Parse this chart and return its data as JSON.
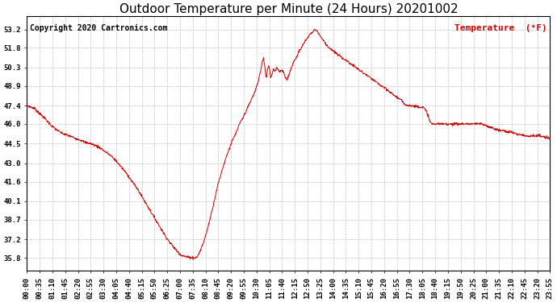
{
  "title": "Outdoor Temperature per Minute (24 Hours) 20201002",
  "copyright_text": "Copyright 2020 Cartronics.com",
  "legend_label": "Temperature  (°F)",
  "line_color": "#cc0000",
  "background_color": "#ffffff",
  "grid_color": "#bbbbbb",
  "yticks": [
    35.8,
    37.2,
    38.7,
    40.1,
    41.6,
    43.0,
    44.5,
    46.0,
    47.4,
    48.9,
    50.3,
    51.8,
    53.2
  ],
  "ylim": [
    34.8,
    54.2
  ],
  "x_labels": [
    "00:00",
    "00:35",
    "01:10",
    "01:45",
    "02:20",
    "02:55",
    "03:30",
    "04:05",
    "04:40",
    "05:15",
    "05:50",
    "06:25",
    "07:00",
    "07:35",
    "08:10",
    "08:45",
    "09:20",
    "09:55",
    "10:30",
    "11:05",
    "11:40",
    "12:15",
    "12:50",
    "13:25",
    "14:00",
    "14:35",
    "15:10",
    "15:45",
    "16:20",
    "16:55",
    "17:30",
    "18:05",
    "18:40",
    "19:15",
    "19:50",
    "20:25",
    "21:00",
    "21:35",
    "22:10",
    "22:45",
    "23:20",
    "23:55"
  ],
  "title_fontsize": 11,
  "axis_fontsize": 6.5,
  "copyright_fontsize": 7,
  "legend_fontsize": 8,
  "control_points": [
    [
      0,
      47.4
    ],
    [
      10,
      47.3
    ],
    [
      20,
      47.2
    ],
    [
      35,
      46.8
    ],
    [
      50,
      46.4
    ],
    [
      60,
      46.1
    ],
    [
      70,
      45.8
    ],
    [
      85,
      45.5
    ],
    [
      95,
      45.3
    ],
    [
      105,
      45.2
    ],
    [
      115,
      45.1
    ],
    [
      120,
      45.05
    ],
    [
      130,
      44.95
    ],
    [
      140,
      44.85
    ],
    [
      150,
      44.75
    ],
    [
      160,
      44.6
    ],
    [
      175,
      44.5
    ],
    [
      185,
      44.4
    ],
    [
      200,
      44.2
    ],
    [
      215,
      43.9
    ],
    [
      230,
      43.6
    ],
    [
      245,
      43.2
    ],
    [
      260,
      42.7
    ],
    [
      275,
      42.2
    ],
    [
      290,
      41.6
    ],
    [
      305,
      41.0
    ],
    [
      320,
      40.3
    ],
    [
      335,
      39.6
    ],
    [
      350,
      38.9
    ],
    [
      365,
      38.2
    ],
    [
      380,
      37.5
    ],
    [
      395,
      36.9
    ],
    [
      410,
      36.4
    ],
    [
      425,
      36.0
    ],
    [
      440,
      35.85
    ],
    [
      455,
      35.82
    ],
    [
      460,
      35.8
    ],
    [
      463,
      35.8
    ],
    [
      468,
      35.85
    ],
    [
      475,
      36.2
    ],
    [
      485,
      36.9
    ],
    [
      495,
      37.8
    ],
    [
      505,
      38.9
    ],
    [
      515,
      40.1
    ],
    [
      525,
      41.3
    ],
    [
      535,
      42.3
    ],
    [
      545,
      43.2
    ],
    [
      555,
      44.0
    ],
    [
      565,
      44.7
    ],
    [
      575,
      45.3
    ],
    [
      585,
      46.0
    ],
    [
      595,
      46.5
    ],
    [
      603,
      47.0
    ],
    [
      610,
      47.4
    ],
    [
      618,
      47.9
    ],
    [
      625,
      48.3
    ],
    [
      630,
      48.7
    ],
    [
      635,
      49.1
    ],
    [
      640,
      49.7
    ],
    [
      645,
      50.3
    ],
    [
      648,
      50.8
    ],
    [
      651,
      51.0
    ],
    [
      655,
      50.2
    ],
    [
      658,
      49.5
    ],
    [
      661,
      50.0
    ],
    [
      665,
      50.5
    ],
    [
      668,
      50.1
    ],
    [
      671,
      49.5
    ],
    [
      674,
      49.8
    ],
    [
      678,
      50.2
    ],
    [
      682,
      50.0
    ],
    [
      686,
      50.3
    ],
    [
      690,
      50.2
    ],
    [
      695,
      50.0
    ],
    [
      700,
      50.1
    ],
    [
      705,
      50.0
    ],
    [
      710,
      49.6
    ],
    [
      715,
      49.3
    ],
    [
      720,
      49.7
    ],
    [
      725,
      50.1
    ],
    [
      730,
      50.5
    ],
    [
      735,
      50.8
    ],
    [
      740,
      51.0
    ],
    [
      748,
      51.5
    ],
    [
      755,
      51.8
    ],
    [
      763,
      52.2
    ],
    [
      770,
      52.5
    ],
    [
      778,
      52.8
    ],
    [
      785,
      53.0
    ],
    [
      792,
      53.2
    ],
    [
      798,
      53.1
    ],
    [
      805,
      52.8
    ],
    [
      812,
      52.5
    ],
    [
      820,
      52.2
    ],
    [
      828,
      51.9
    ],
    [
      836,
      51.7
    ],
    [
      845,
      51.5
    ],
    [
      855,
      51.3
    ],
    [
      865,
      51.1
    ],
    [
      875,
      50.9
    ],
    [
      885,
      50.7
    ],
    [
      895,
      50.5
    ],
    [
      905,
      50.3
    ],
    [
      915,
      50.1
    ],
    [
      925,
      49.9
    ],
    [
      935,
      49.7
    ],
    [
      945,
      49.5
    ],
    [
      955,
      49.3
    ],
    [
      965,
      49.1
    ],
    [
      975,
      48.9
    ],
    [
      985,
      48.7
    ],
    [
      995,
      48.5
    ],
    [
      1005,
      48.3
    ],
    [
      1010,
      48.2
    ],
    [
      1020,
      48.0
    ],
    [
      1030,
      47.8
    ],
    [
      1035,
      47.6
    ],
    [
      1040,
      47.5
    ],
    [
      1045,
      47.45
    ],
    [
      1050,
      47.42
    ],
    [
      1055,
      47.4
    ],
    [
      1060,
      47.38
    ],
    [
      1065,
      47.36
    ],
    [
      1070,
      47.35
    ],
    [
      1075,
      47.33
    ],
    [
      1080,
      47.31
    ],
    [
      1085,
      47.3
    ],
    [
      1090,
      47.27
    ],
    [
      1095,
      47.1
    ],
    [
      1100,
      46.9
    ],
    [
      1105,
      46.6
    ],
    [
      1107,
      46.3
    ],
    [
      1110,
      46.1
    ],
    [
      1115,
      46.0
    ],
    [
      1120,
      46.0
    ],
    [
      1125,
      46.0
    ],
    [
      1130,
      46.0
    ],
    [
      1140,
      46.0
    ],
    [
      1150,
      46.0
    ],
    [
      1160,
      46.0
    ],
    [
      1170,
      46.0
    ],
    [
      1180,
      46.0
    ],
    [
      1190,
      46.0
    ],
    [
      1200,
      46.0
    ],
    [
      1210,
      46.0
    ],
    [
      1220,
      46.0
    ],
    [
      1230,
      46.0
    ],
    [
      1240,
      46.0
    ],
    [
      1250,
      46.0
    ],
    [
      1260,
      45.9
    ],
    [
      1270,
      45.8
    ],
    [
      1280,
      45.7
    ],
    [
      1290,
      45.6
    ],
    [
      1300,
      45.5
    ],
    [
      1310,
      45.5
    ],
    [
      1320,
      45.4
    ],
    [
      1330,
      45.4
    ],
    [
      1340,
      45.3
    ],
    [
      1350,
      45.2
    ],
    [
      1360,
      45.2
    ],
    [
      1370,
      45.1
    ],
    [
      1380,
      45.1
    ],
    [
      1390,
      45.1
    ],
    [
      1400,
      45.1
    ],
    [
      1410,
      45.1
    ],
    [
      1420,
      45.0
    ],
    [
      1430,
      44.95
    ],
    [
      1439,
      44.9
    ]
  ]
}
